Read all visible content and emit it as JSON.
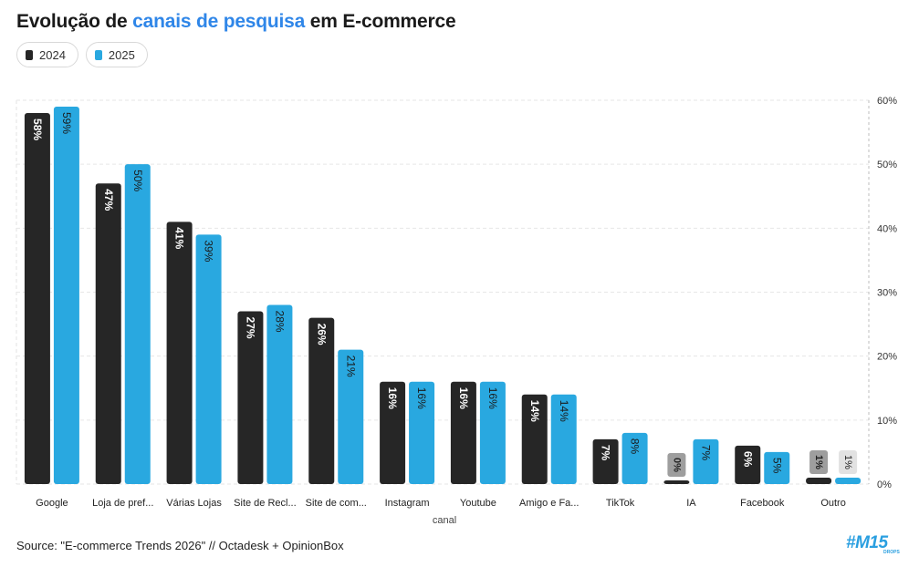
{
  "title": {
    "part1": "Evolução de ",
    "highlight": "canais de pesquisa",
    "part2": " em E-commerce"
  },
  "legend": [
    {
      "label": "2024",
      "color": "#262626"
    },
    {
      "label": "2025",
      "color": "#29a8e0"
    }
  ],
  "source": "Source: \"E-commerce Trends 2026\" // Octadesk + OpinionBox",
  "logo": {
    "text": "#M15",
    "sub": "DROPS"
  },
  "chart_data": {
    "type": "bar",
    "xlabel": "canal",
    "ylabel": "",
    "ylim": [
      0,
      60
    ],
    "y_ticks": [
      "0%",
      "10%",
      "20%",
      "30%",
      "40%",
      "50%",
      "60%"
    ],
    "y_axis_position": "right",
    "grid": true,
    "legend_position": "top-left",
    "categories": [
      "Google",
      "Loja de pref...",
      "Várias Lojas",
      "Site de Recl...",
      "Site de com...",
      "Instagram",
      "Youtube",
      "Amigo e Fa...",
      "TikTok",
      "IA",
      "Facebook",
      "Outro"
    ],
    "series": [
      {
        "name": "2024",
        "color": "#262626",
        "values": [
          58,
          47,
          41,
          27,
          26,
          16,
          16,
          14,
          7,
          0,
          6,
          1
        ]
      },
      {
        "name": "2025",
        "color": "#29a8e0",
        "values": [
          59,
          50,
          39,
          28,
          21,
          16,
          16,
          14,
          8,
          7,
          5,
          1
        ]
      }
    ],
    "value_suffix": "%"
  }
}
